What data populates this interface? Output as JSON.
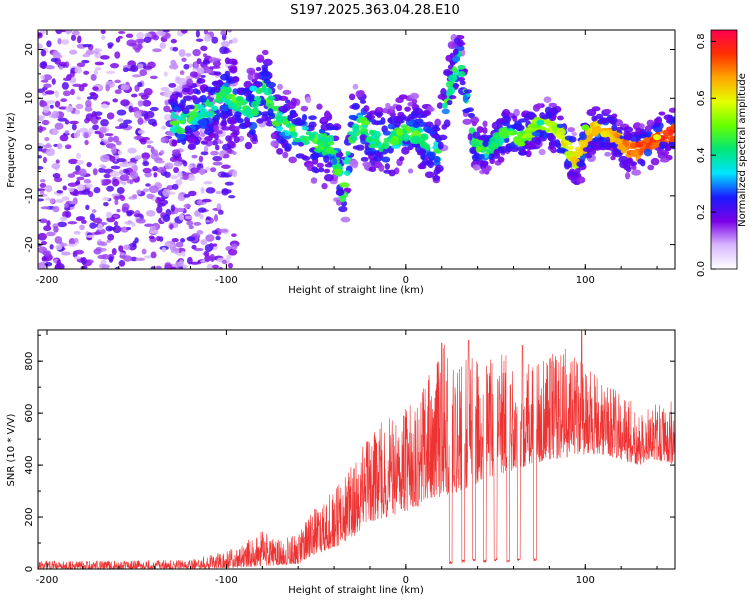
{
  "title": "S197.2025.363.04.28.E10",
  "chart_data": [
    {
      "type": "heatmap",
      "name": "spectrogram",
      "xlabel": "Height of straight line (km)",
      "ylabel": "Frequency (Hz)",
      "xlim": [
        -205,
        150
      ],
      "ylim": [
        -25,
        24
      ],
      "x_ticks": [
        -200,
        -100,
        0,
        100
      ],
      "y_ticks": [
        -20,
        -10,
        0,
        10,
        20
      ],
      "colorbar": {
        "label": "Normalized spectral amplitude",
        "range": [
          0.0,
          0.84
        ],
        "ticks": [
          "0.0",
          "0.2",
          "0.4",
          "0.6",
          "0.8"
        ],
        "colors": [
          "#ffffff",
          "#d8b8ff",
          "#7a00e6",
          "#1a1aff",
          "#00e5ff",
          "#00e676",
          "#66ff00",
          "#e6ff00",
          "#ffa500",
          "#ff3000",
          "#ff0050"
        ]
      },
      "ridge": {
        "x": [
          -125,
          -110,
          -100,
          -95,
          -85,
          -80,
          -70,
          -60,
          -50,
          -40,
          -35,
          -30,
          -25,
          -20,
          -10,
          0,
          10,
          18,
          22,
          30,
          38,
          45,
          55,
          65,
          75,
          85,
          90,
          95,
          100,
          105,
          115,
          120,
          130,
          140,
          150
        ],
        "y": [
          5,
          8,
          11,
          9,
          7,
          13,
          5,
          3,
          1,
          0,
          -10,
          3,
          5,
          2,
          1,
          3,
          2,
          -1,
          9,
          18,
          1,
          -1,
          3,
          2,
          5,
          3,
          0,
          -3,
          1,
          4,
          3,
          0,
          -1,
          2,
          3
        ]
      }
    },
    {
      "type": "line",
      "name": "snr",
      "xlabel": "Height of straight line (km)",
      "ylabel": "SNR (10 * V/V)",
      "xlim": [
        -205,
        150
      ],
      "ylim": [
        0,
        920
      ],
      "x_ticks": [
        -200,
        -100,
        0,
        100
      ],
      "y_ticks": [
        0,
        200,
        400,
        600,
        800
      ],
      "color": "#ee3333",
      "envelope": {
        "x": [
          -205,
          -120,
          -95,
          -80,
          -70,
          -60,
          -50,
          -40,
          -30,
          -20,
          -10,
          0,
          10,
          20,
          30,
          40,
          50,
          60,
          70,
          80,
          90,
          100,
          110,
          120,
          130,
          140,
          150
        ],
        "lower": [
          0,
          0,
          5,
          10,
          15,
          20,
          60,
          80,
          120,
          180,
          200,
          220,
          250,
          280,
          300,
          330,
          360,
          380,
          400,
          420,
          430,
          440,
          440,
          420,
          400,
          420,
          400
        ],
        "upper": [
          30,
          35,
          80,
          150,
          110,
          140,
          250,
          300,
          400,
          520,
          600,
          620,
          700,
          880,
          800,
          850,
          820,
          850,
          780,
          820,
          870,
          780,
          720,
          680,
          620,
          640,
          650
        ]
      },
      "dips": [
        {
          "x": 25,
          "value": 20
        },
        {
          "x": 32,
          "value": 25
        },
        {
          "x": 38,
          "value": 30
        },
        {
          "x": 44,
          "value": 25
        },
        {
          "x": 50,
          "value": 30
        },
        {
          "x": 57,
          "value": 25
        },
        {
          "x": 63,
          "value": 30
        },
        {
          "x": 72,
          "value": 30
        }
      ],
      "peaks": [
        {
          "x": 20,
          "value": 870
        },
        {
          "x": 35,
          "value": 880
        },
        {
          "x": 65,
          "value": 860
        },
        {
          "x": 98,
          "value": 920
        }
      ]
    }
  ]
}
